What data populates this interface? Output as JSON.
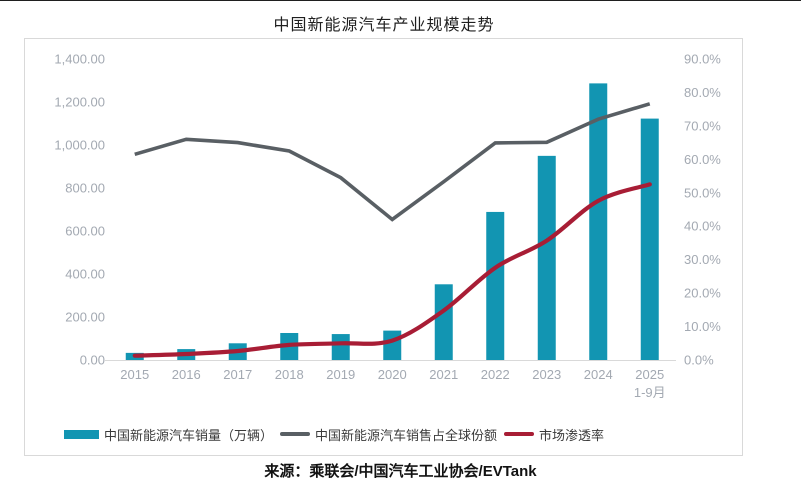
{
  "title": "中国新能源汽车产业规模走势",
  "source": "来源：乘联会/中国汽车工业协会/EVTank",
  "colors": {
    "bar": "#1295b2",
    "share_line": "#595f64",
    "penetration_line": "#a81d35",
    "axis_text": "#a3a9b2",
    "frame_border": "#d9d9d9",
    "axis_line": "#d9d9d9",
    "title_text": "#1f1f1f",
    "legend_text": "#3a3a3a",
    "top_rule": "#1f1f1f"
  },
  "chart_data": {
    "type": "bar",
    "subtype": "combo-bar-line",
    "title": "中国新能源汽车产业规模走势",
    "categories": [
      "2015",
      "2016",
      "2017",
      "2018",
      "2019",
      "2020",
      "2021",
      "2022",
      "2023",
      "2024",
      "2025\n1-9月"
    ],
    "series": [
      {
        "name": "中国新能源汽车销量（万辆）",
        "type": "bar",
        "axis": "left",
        "color": "#1295b2",
        "values": [
          33.1,
          50.7,
          77.7,
          125.6,
          120.6,
          136.7,
          352.1,
          688.7,
          949.5,
          1286.6,
          1122.8
        ]
      },
      {
        "name": "中国新能源汽车销售占全球份额",
        "type": "line",
        "axis": "right",
        "color": "#595f64",
        "smooth": false,
        "values": [
          61.5,
          66.0,
          65.0,
          62.5,
          54.5,
          42.0,
          53.3,
          64.9,
          65.1,
          72.0,
          76.6
        ]
      },
      {
        "name": "市场渗透率",
        "type": "line",
        "axis": "right",
        "color": "#a81d35",
        "smooth": true,
        "values": [
          1.3,
          1.8,
          2.7,
          4.5,
          5.0,
          5.8,
          14.8,
          27.6,
          35.7,
          47.6,
          52.5
        ]
      }
    ],
    "left_axis": {
      "min": 0,
      "max": 1400,
      "step": 200,
      "tick_labels": [
        "0.00",
        "200.00",
        "400.00",
        "600.00",
        "800.00",
        "1,000.00",
        "1,200.00",
        "1,400.00"
      ]
    },
    "right_axis": {
      "min": 0,
      "max": 90,
      "step": 10,
      "tick_labels": [
        "0.0%",
        "10.0%",
        "20.0%",
        "30.0%",
        "40.0%",
        "50.0%",
        "60.0%",
        "70.0%",
        "80.0%",
        "90.0%"
      ]
    },
    "grid": false,
    "legend_position": "bottom"
  }
}
